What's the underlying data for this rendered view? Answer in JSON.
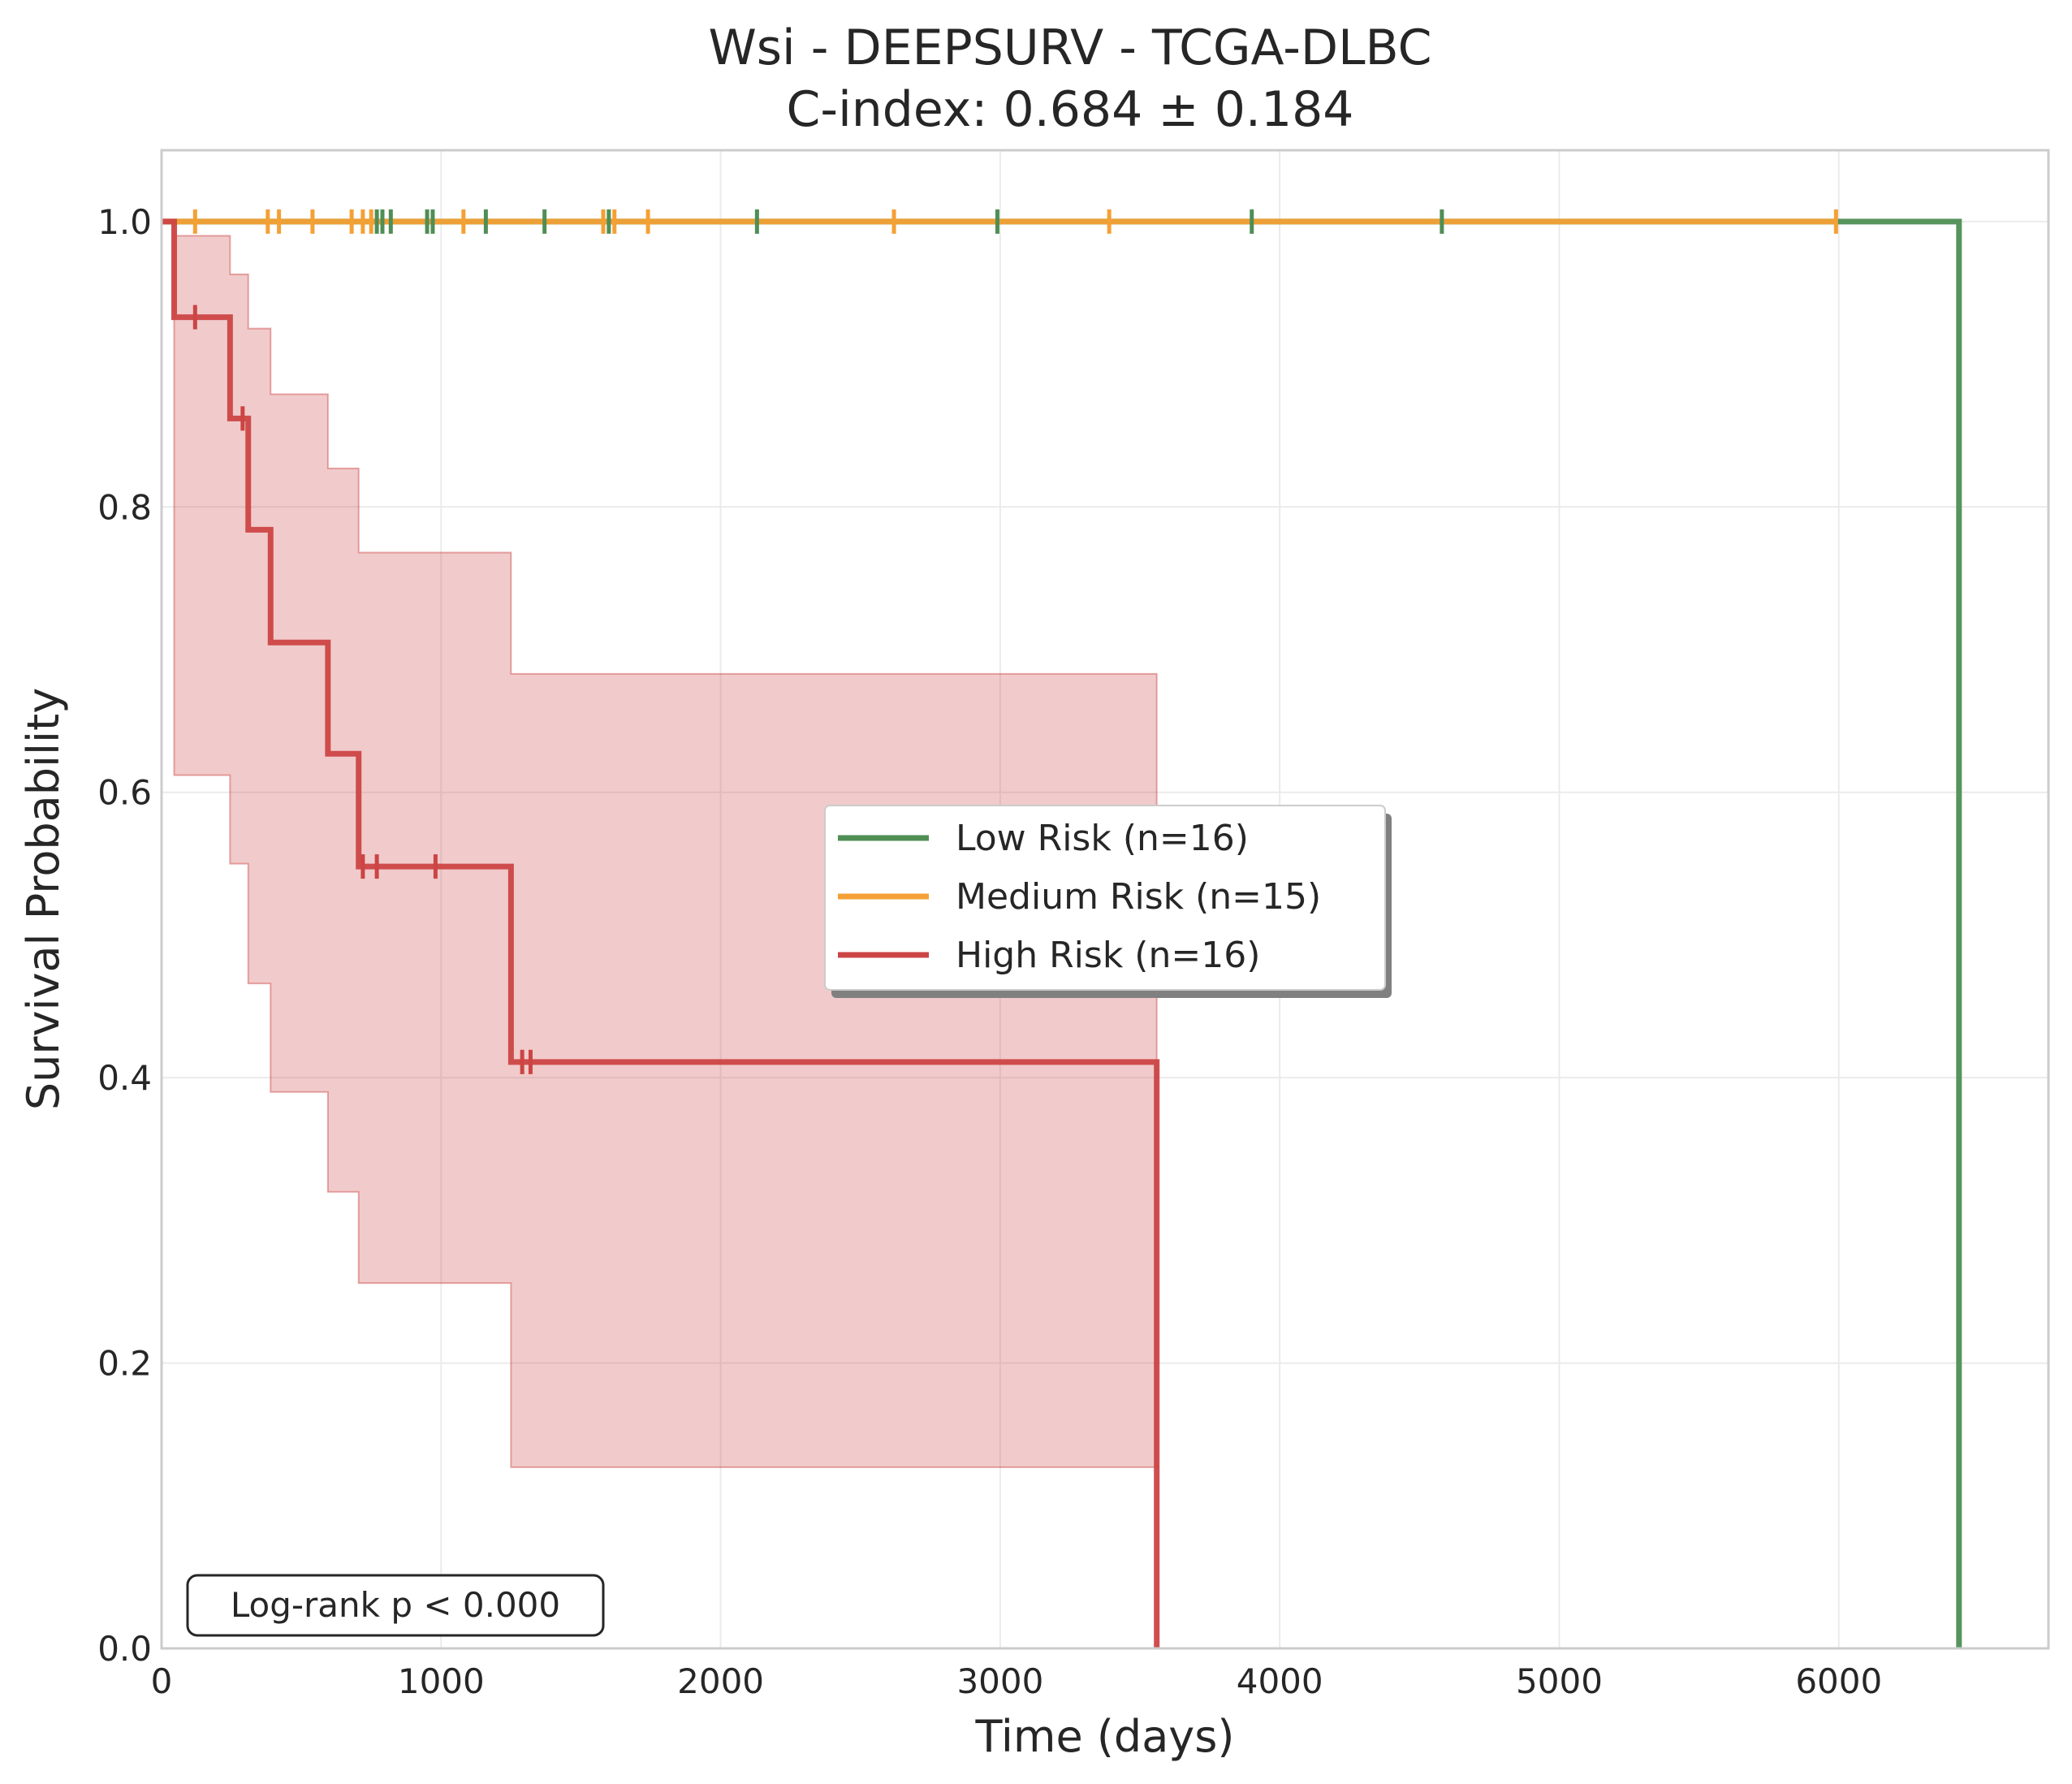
{
  "chart_data": {
    "type": "line",
    "subtype": "kaplan-meier",
    "title": "Wsi - DEEPSURV - TCGA-DLBC",
    "subtitle": "C-index: 0.684 ± 0.184",
    "xlabel": "Time (days)",
    "ylabel": "Survival Probability",
    "xlim": [
      0,
      6750
    ],
    "ylim": [
      0,
      1.05
    ],
    "xticks": [
      0,
      1000,
      2000,
      3000,
      4000,
      5000,
      6000
    ],
    "xtick_labels": [
      "0",
      "1000",
      "2000",
      "3000",
      "4000",
      "5000",
      "6000"
    ],
    "yticks": [
      0.0,
      0.2,
      0.4,
      0.6,
      0.8,
      1.0
    ],
    "ytick_labels": [
      "0.0",
      "0.2",
      "0.4",
      "0.6",
      "0.8",
      "1.0"
    ],
    "grid": true,
    "legend_position": "center-right",
    "annotation": "Log-rank p < 0.000",
    "series": [
      {
        "name": "Low Risk (n=16)",
        "color": "#4f8e55",
        "steps": [
          [
            0,
            1.0
          ],
          [
            6430,
            1.0
          ],
          [
            6430,
            0.0
          ]
        ],
        "censor_times": [
          770,
          790,
          820,
          950,
          970,
          1160,
          1370,
          1600,
          2130,
          2990,
          3900,
          4580
        ]
      },
      {
        "name": "Medium Risk (n=15)",
        "color": "#f5a035",
        "steps": [
          [
            0,
            1.0
          ],
          [
            5990,
            1.0
          ]
        ],
        "censor_times": [
          120,
          380,
          420,
          540,
          680,
          720,
          750,
          1080,
          1580,
          1620,
          1740,
          2620,
          3390,
          5990
        ]
      },
      {
        "name": "High Risk (n=16)",
        "color": "#cc4444",
        "steps": [
          [
            0,
            1.0
          ],
          [
            45,
            1.0
          ],
          [
            45,
            0.933
          ],
          [
            245,
            0.933
          ],
          [
            245,
            0.862
          ],
          [
            310,
            0.862
          ],
          [
            310,
            0.784
          ],
          [
            390,
            0.784
          ],
          [
            390,
            0.705
          ],
          [
            595,
            0.705
          ],
          [
            595,
            0.627
          ],
          [
            705,
            0.627
          ],
          [
            705,
            0.548
          ],
          [
            1250,
            0.548
          ],
          [
            1250,
            0.411
          ],
          [
            3560,
            0.411
          ],
          [
            3560,
            0.0
          ]
        ],
        "ci_band": [
          [
            0,
            1.0,
            1.0
          ],
          [
            45,
            0.612,
            0.99
          ],
          [
            245,
            0.55,
            0.963
          ],
          [
            310,
            0.466,
            0.925
          ],
          [
            390,
            0.39,
            0.879
          ],
          [
            595,
            0.32,
            0.827
          ],
          [
            705,
            0.256,
            0.768
          ],
          [
            1250,
            0.127,
            0.683
          ],
          [
            3560,
            0.127,
            0.683
          ]
        ],
        "censor_times": [
          120,
          290,
          720,
          770,
          980,
          1290,
          1320
        ]
      }
    ]
  }
}
